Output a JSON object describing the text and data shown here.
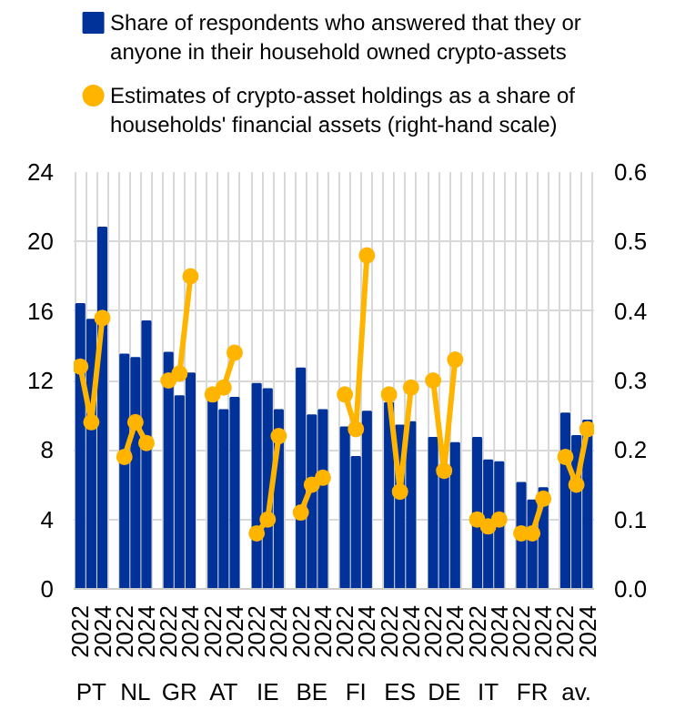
{
  "chart_data": {
    "type": "bar",
    "categories": [
      "2022",
      null,
      "2024",
      null,
      "2022",
      null,
      "2024",
      null,
      "2022",
      null,
      "2024",
      null,
      "2022",
      null,
      "2024",
      null,
      "2022",
      null,
      "2024",
      null,
      "2022",
      null,
      "2024",
      null,
      "2022",
      null,
      "2024",
      null,
      "2022",
      null,
      "2024",
      null,
      "2022",
      null,
      "2024",
      null,
      "2022",
      null,
      "2024",
      null,
      "2022",
      null,
      "2024",
      null,
      "2022",
      null,
      "2024"
    ],
    "series": [
      {
        "name": "Share of respondents who answered that they or anyone in their household owned crypto-assets",
        "color": "#003299",
        "values": [
          16.4,
          15.5,
          20.8,
          null,
          13.5,
          13.3,
          15.4,
          null,
          13.6,
          11.1,
          12.4,
          null,
          11.0,
          10.3,
          11.0,
          null,
          11.8,
          11.5,
          10.3,
          null,
          12.7,
          10.0,
          10.3,
          null,
          9.3,
          7.6,
          10.2,
          null,
          10.7,
          9.4,
          9.6,
          null,
          8.7,
          6.6,
          8.4,
          null,
          8.7,
          7.4,
          7.3,
          null,
          6.1,
          5.1,
          5.8,
          null,
          10.1,
          8.8,
          9.7
        ]
      },
      {
        "name": "Estimates of crypto-asset holdings as a share of households' financial assets (right-hand scale)",
        "type": "line",
        "axis": "y2",
        "color": "#ffb400",
        "values": [
          0.32,
          0.24,
          0.39,
          null,
          0.19,
          0.24,
          0.21,
          null,
          0.3,
          0.31,
          0.45,
          null,
          0.28,
          0.29,
          0.34,
          null,
          0.08,
          0.1,
          0.22,
          null,
          0.11,
          0.15,
          0.16,
          null,
          0.28,
          0.23,
          0.48,
          null,
          0.28,
          0.14,
          0.29,
          null,
          0.3,
          0.17,
          0.33,
          null,
          0.1,
          0.09,
          0.1,
          null,
          0.08,
          0.08,
          0.13,
          null,
          0.19,
          0.15,
          0.23
        ]
      }
    ],
    "annotations": [
      "PT",
      "NL",
      "GR",
      "AT",
      "IE",
      "BE",
      "FI",
      "ES",
      "DE",
      "IT",
      "FR",
      "av."
    ],
    "ylim": [
      0,
      24
    ],
    "yticks": [
      0,
      4,
      8,
      12,
      16,
      20,
      24
    ],
    "y2lim": [
      0,
      0.6
    ],
    "y2ticks": [
      {
        "value": 0,
        "label": "0.0"
      },
      0.1,
      0.2,
      0.3,
      0.4,
      0.5,
      0.6
    ],
    "grid": true,
    "legend": "top",
    "marker": "circle",
    "line_style": "solid"
  }
}
